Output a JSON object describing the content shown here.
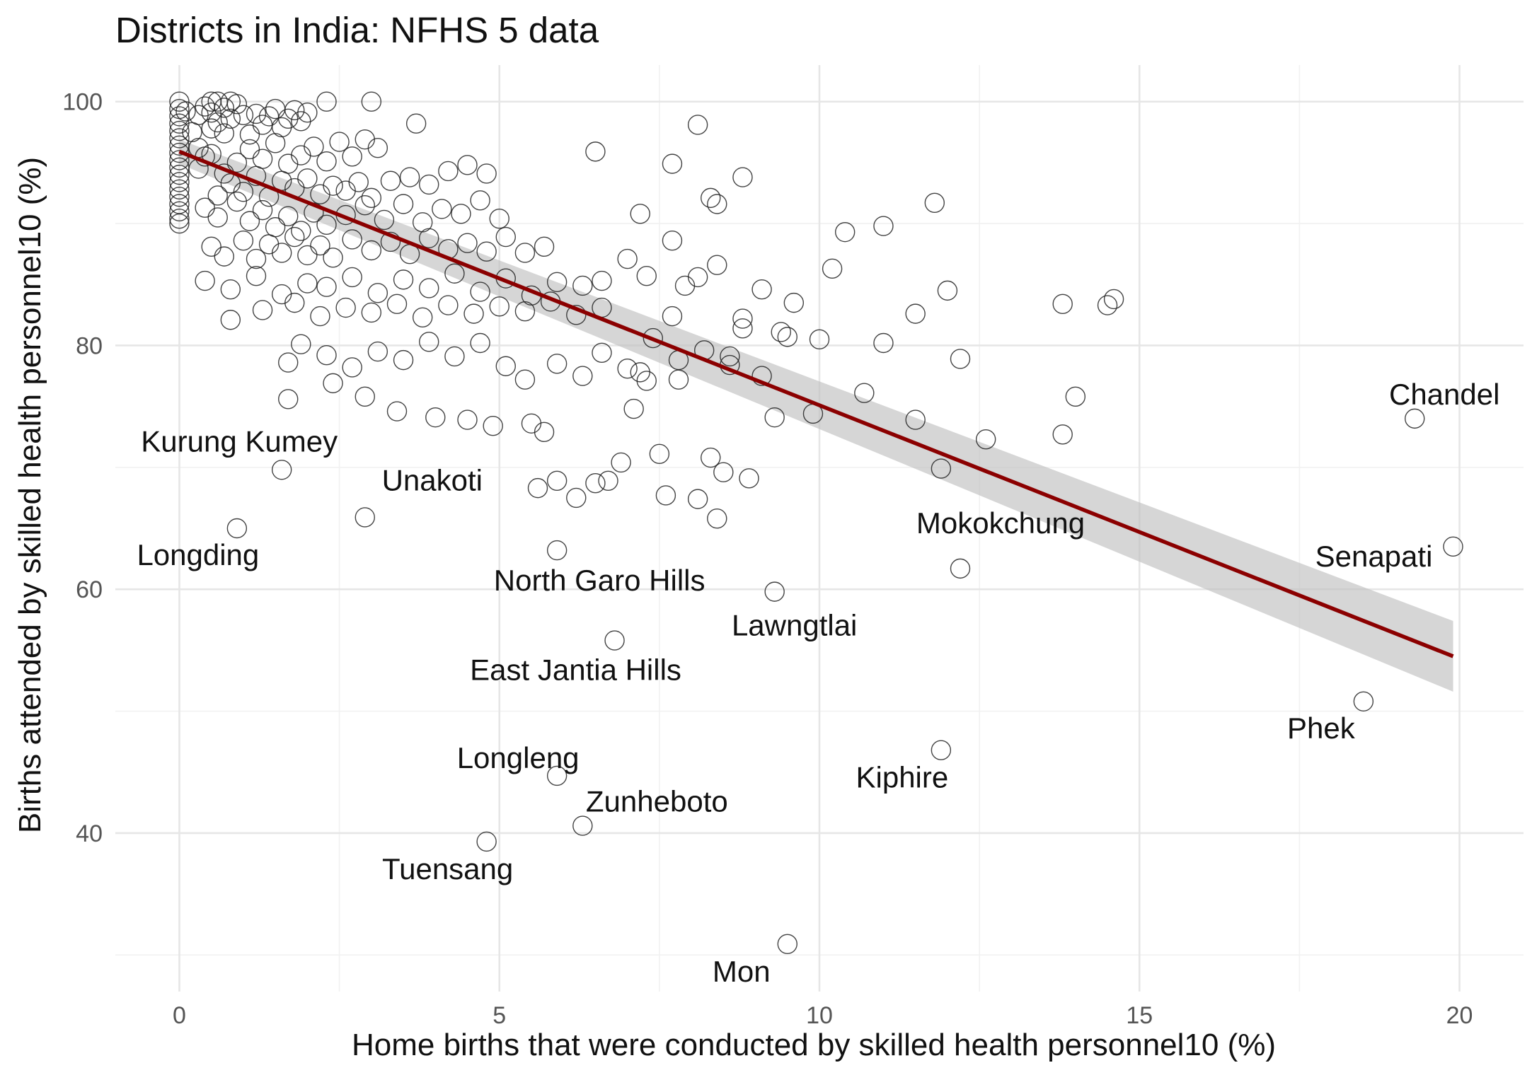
{
  "chart_data": {
    "type": "scatter",
    "title": "Districts in India: NFHS 5 data",
    "xlabel": "Home births that were conducted by skilled health personnel10 (%)",
    "ylabel": "Births attended by skilled health personnel10 (%)",
    "xlim": [
      -1,
      21
    ],
    "ylim": [
      27,
      103
    ],
    "x_ticks": [
      0,
      5,
      10,
      15,
      20
    ],
    "y_ticks": [
      40,
      60,
      80,
      100
    ],
    "grid": true,
    "point_style": "hollow circle",
    "fit_line": {
      "method": "linear",
      "x": [
        0,
        19.9
      ],
      "y": [
        95.9,
        54.5
      ],
      "band_lower": [
        94.9,
        51.6
      ],
      "band_upper": [
        96.9,
        57.4
      ],
      "color": "#8b0000",
      "band_color": "#bdbdbd"
    },
    "labeled_points": [
      {
        "name": "Kurung Kumey",
        "x": 1.6,
        "y": 69.8
      },
      {
        "name": "Longding",
        "x": 0.9,
        "y": 65.0
      },
      {
        "name": "Unakoti",
        "x": 2.9,
        "y": 65.9
      },
      {
        "name": "North Garo Hills",
        "x": 5.9,
        "y": 63.2
      },
      {
        "name": "Mokokchung",
        "x": 12.2,
        "y": 61.7
      },
      {
        "name": "Lawngtlai",
        "x": 9.3,
        "y": 59.8
      },
      {
        "name": "East Jantia Hills",
        "x": 6.8,
        "y": 55.8
      },
      {
        "name": "Longleng",
        "x": 5.9,
        "y": 44.7
      },
      {
        "name": "Zunheboto",
        "x": 6.3,
        "y": 40.6
      },
      {
        "name": "Tuensang",
        "x": 4.8,
        "y": 39.3
      },
      {
        "name": "Mon",
        "x": 9.5,
        "y": 30.9
      },
      {
        "name": "Kiphire",
        "x": 11.9,
        "y": 46.8
      },
      {
        "name": "Chandel",
        "x": 19.3,
        "y": 74.0
      },
      {
        "name": "Senapati",
        "x": 19.9,
        "y": 63.5
      },
      {
        "name": "Phek",
        "x": 18.5,
        "y": 50.8
      }
    ],
    "points": [
      [
        0,
        100
      ],
      [
        0,
        99.4
      ],
      [
        0,
        98.8
      ],
      [
        0,
        98.2
      ],
      [
        0,
        97.6
      ],
      [
        0,
        97
      ],
      [
        0,
        96.4
      ],
      [
        0,
        95.8
      ],
      [
        0,
        95.2
      ],
      [
        0,
        94.6
      ],
      [
        0,
        94
      ],
      [
        0,
        93.4
      ],
      [
        0,
        92.8
      ],
      [
        0,
        92.2
      ],
      [
        0,
        91.6
      ],
      [
        0,
        91
      ],
      [
        0,
        90.4
      ],
      [
        0,
        90
      ],
      [
        0.1,
        99.2
      ],
      [
        0.2,
        97.5
      ],
      [
        0.3,
        98.9
      ],
      [
        0.3,
        96.2
      ],
      [
        0.4,
        95.5
      ],
      [
        0.4,
        99.6
      ],
      [
        0.5,
        100
      ],
      [
        0.5,
        97.8
      ],
      [
        0.5,
        99.1
      ],
      [
        0.6,
        100
      ],
      [
        0.6,
        98.3
      ],
      [
        0.7,
        99.5
      ],
      [
        0.7,
        97.4
      ],
      [
        0.8,
        100
      ],
      [
        0.8,
        98.6
      ],
      [
        0.9,
        99.8
      ],
      [
        1.0,
        98.9
      ],
      [
        1.1,
        97.3
      ],
      [
        1.2,
        99
      ],
      [
        1.3,
        98.1
      ],
      [
        1.4,
        98.8
      ],
      [
        1.5,
        99.4
      ],
      [
        1.6,
        97.9
      ],
      [
        1.7,
        98.6
      ],
      [
        1.8,
        99.3
      ],
      [
        1.9,
        98.4
      ],
      [
        2.0,
        99.1
      ],
      [
        2.3,
        100
      ],
      [
        3.0,
        100
      ],
      [
        3.7,
        98.2
      ],
      [
        0.3,
        94.5
      ],
      [
        0.5,
        95.7
      ],
      [
        0.7,
        94.1
      ],
      [
        0.9,
        95
      ],
      [
        1.1,
        96.1
      ],
      [
        1.3,
        95.3
      ],
      [
        1.5,
        96.6
      ],
      [
        1.7,
        94.9
      ],
      [
        1.9,
        95.6
      ],
      [
        2.1,
        96.3
      ],
      [
        2.3,
        95.1
      ],
      [
        2.5,
        96.7
      ],
      [
        2.7,
        95.5
      ],
      [
        2.9,
        96.9
      ],
      [
        3.1,
        96.2
      ],
      [
        0.6,
        92.3
      ],
      [
        0.8,
        93.3
      ],
      [
        1.0,
        92.6
      ],
      [
        1.2,
        93.9
      ],
      [
        1.4,
        92.2
      ],
      [
        1.6,
        93.5
      ],
      [
        1.8,
        92.9
      ],
      [
        2.0,
        93.7
      ],
      [
        2.2,
        92.4
      ],
      [
        2.4,
        93.1
      ],
      [
        2.6,
        92.7
      ],
      [
        2.8,
        93.4
      ],
      [
        3.0,
        92.1
      ],
      [
        3.3,
        93.5
      ],
      [
        3.6,
        93.8
      ],
      [
        3.9,
        93.2
      ],
      [
        4.2,
        94.3
      ],
      [
        4.5,
        94.8
      ],
      [
        4.8,
        94.1
      ],
      [
        0.4,
        91.3
      ],
      [
        0.6,
        90.5
      ],
      [
        0.9,
        91.8
      ],
      [
        1.1,
        90.2
      ],
      [
        1.3,
        91.1
      ],
      [
        1.5,
        89.7
      ],
      [
        1.7,
        90.6
      ],
      [
        1.9,
        89.4
      ],
      [
        2.1,
        90.9
      ],
      [
        2.3,
        89.9
      ],
      [
        2.6,
        90.7
      ],
      [
        2.9,
        91.5
      ],
      [
        3.2,
        90.3
      ],
      [
        3.5,
        91.6
      ],
      [
        3.8,
        90.1
      ],
      [
        4.1,
        91.2
      ],
      [
        4.4,
        90.8
      ],
      [
        4.7,
        91.9
      ],
      [
        5.0,
        90.4
      ],
      [
        0.5,
        88.1
      ],
      [
        0.7,
        87.3
      ],
      [
        1.0,
        88.6
      ],
      [
        1.2,
        87.1
      ],
      [
        1.4,
        88.3
      ],
      [
        1.6,
        87.6
      ],
      [
        1.8,
        88.9
      ],
      [
        2.0,
        87.4
      ],
      [
        2.2,
        88.2
      ],
      [
        2.4,
        87.2
      ],
      [
        2.7,
        88.7
      ],
      [
        3.0,
        87.8
      ],
      [
        3.3,
        88.5
      ],
      [
        3.6,
        87.5
      ],
      [
        3.9,
        88.8
      ],
      [
        4.2,
        87.9
      ],
      [
        4.5,
        88.4
      ],
      [
        4.8,
        87.7
      ],
      [
        5.1,
        88.9
      ],
      [
        5.4,
        87.6
      ],
      [
        5.7,
        88.1
      ],
      [
        0.4,
        85.3
      ],
      [
        0.8,
        84.6
      ],
      [
        1.2,
        85.7
      ],
      [
        1.6,
        84.2
      ],
      [
        2.0,
        85.1
      ],
      [
        2.3,
        84.8
      ],
      [
        2.7,
        85.6
      ],
      [
        3.1,
        84.3
      ],
      [
        3.5,
        85.4
      ],
      [
        3.9,
        84.7
      ],
      [
        4.3,
        85.9
      ],
      [
        4.7,
        84.4
      ],
      [
        5.1,
        85.5
      ],
      [
        5.5,
        84.1
      ],
      [
        5.9,
        85.2
      ],
      [
        6.3,
        84.9
      ],
      [
        6.6,
        85.3
      ],
      [
        0.8,
        82.1
      ],
      [
        1.3,
        82.9
      ],
      [
        1.8,
        83.5
      ],
      [
        2.2,
        82.4
      ],
      [
        2.6,
        83.1
      ],
      [
        3.0,
        82.7
      ],
      [
        3.4,
        83.4
      ],
      [
        3.8,
        82.3
      ],
      [
        4.2,
        83.3
      ],
      [
        4.6,
        82.6
      ],
      [
        5.0,
        83.2
      ],
      [
        5.4,
        82.8
      ],
      [
        5.8,
        83.6
      ],
      [
        6.2,
        82.5
      ],
      [
        6.6,
        83.1
      ],
      [
        1.7,
        78.6
      ],
      [
        1.9,
        80.1
      ],
      [
        2.3,
        79.2
      ],
      [
        2.7,
        78.2
      ],
      [
        3.1,
        79.5
      ],
      [
        3.5,
        78.8
      ],
      [
        3.9,
        80.3
      ],
      [
        4.3,
        79.1
      ],
      [
        4.7,
        80.2
      ],
      [
        5.1,
        78.3
      ],
      [
        5.4,
        77.2
      ],
      [
        5.9,
        78.5
      ],
      [
        6.3,
        77.5
      ],
      [
        6.6,
        79.4
      ],
      [
        7.0,
        78.1
      ],
      [
        7.4,
        80.6
      ],
      [
        7.8,
        78.8
      ],
      [
        8.2,
        79.6
      ],
      [
        8.6,
        79.1
      ],
      [
        9.1,
        77.5
      ],
      [
        9.5,
        80.7
      ],
      [
        10.0,
        80.5
      ],
      [
        1.7,
        75.6
      ],
      [
        2.4,
        76.9
      ],
      [
        2.9,
        75.8
      ],
      [
        3.4,
        74.6
      ],
      [
        4.0,
        74.1
      ],
      [
        4.5,
        73.9
      ],
      [
        4.9,
        73.4
      ],
      [
        5.5,
        73.6
      ],
      [
        5.7,
        72.9
      ],
      [
        7.1,
        74.8
      ],
      [
        7.5,
        71.1
      ],
      [
        9.3,
        74.1
      ],
      [
        9.9,
        74.4
      ],
      [
        11.5,
        73.9
      ],
      [
        12.6,
        72.3
      ],
      [
        13.8,
        72.7
      ],
      [
        5.6,
        68.3
      ],
      [
        5.9,
        68.9
      ],
      [
        6.2,
        67.5
      ],
      [
        6.5,
        68.7
      ],
      [
        6.7,
        68.9
      ],
      [
        6.9,
        70.4
      ],
      [
        7.6,
        67.7
      ],
      [
        8.1,
        67.4
      ],
      [
        8.3,
        70.8
      ],
      [
        8.5,
        69.6
      ],
      [
        8.9,
        69.1
      ],
      [
        11.9,
        69.9
      ],
      [
        8.4,
        65.8
      ],
      [
        6.5,
        95.9
      ],
      [
        8.1,
        98.1
      ],
      [
        7.7,
        94.9
      ],
      [
        8.8,
        93.8
      ],
      [
        8.3,
        92.1
      ],
      [
        8.4,
        91.6
      ],
      [
        7.2,
        90.8
      ],
      [
        10.4,
        89.3
      ],
      [
        11.0,
        89.8
      ],
      [
        11.8,
        91.7
      ],
      [
        10.2,
        86.3
      ],
      [
        9.1,
        84.6
      ],
      [
        9.6,
        83.5
      ],
      [
        8.4,
        86.6
      ],
      [
        8.1,
        85.6
      ],
      [
        7.0,
        87.1
      ],
      [
        7.3,
        85.7
      ],
      [
        7.7,
        88.6
      ],
      [
        7.9,
        84.9
      ],
      [
        8.8,
        82.2
      ],
      [
        9.4,
        81.1
      ],
      [
        11.5,
        82.6
      ],
      [
        12.0,
        84.5
      ],
      [
        11.0,
        80.2
      ],
      [
        12.2,
        78.9
      ],
      [
        10.7,
        76.1
      ],
      [
        14.0,
        75.8
      ],
      [
        13.8,
        83.4
      ],
      [
        14.5,
        83.3
      ],
      [
        14.6,
        83.8
      ],
      [
        8.6,
        78.4
      ],
      [
        8.8,
        81.4
      ],
      [
        7.7,
        82.4
      ],
      [
        7.8,
        77.2
      ],
      [
        7.2,
        77.8
      ],
      [
        7.3,
        77.1
      ]
    ]
  }
}
